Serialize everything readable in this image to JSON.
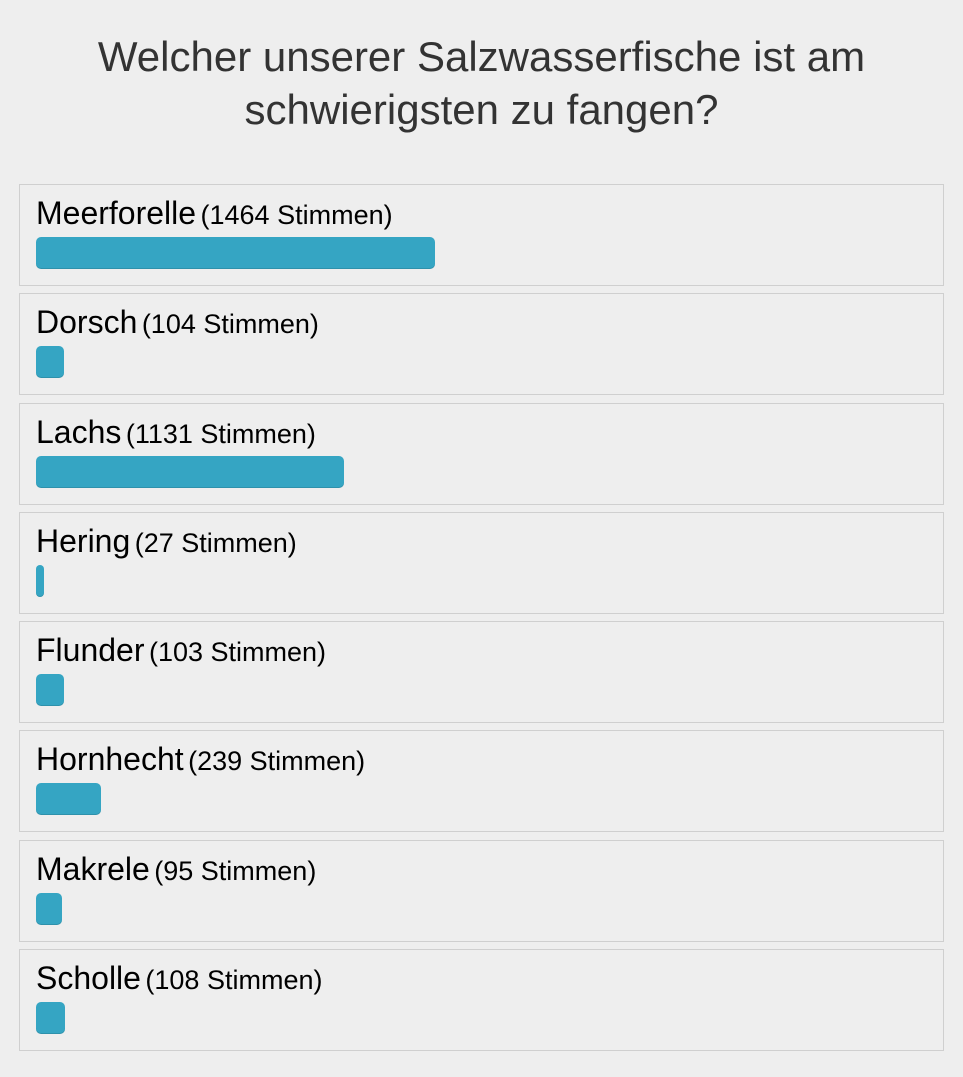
{
  "poll": {
    "title": "Welcher unserer Salzwasserfische ist am schwierigsten zu fangen?",
    "bar_color": "#35a5c3",
    "options": [
      {
        "label": "Meerforelle",
        "votes_text": "(1464 Stimmen)",
        "votes": 1464
      },
      {
        "label": "Dorsch",
        "votes_text": "(104 Stimmen)",
        "votes": 104
      },
      {
        "label": "Lachs",
        "votes_text": "(1131 Stimmen)",
        "votes": 1131
      },
      {
        "label": "Hering",
        "votes_text": "(27 Stimmen)",
        "votes": 27
      },
      {
        "label": "Flunder",
        "votes_text": "(103 Stimmen)",
        "votes": 103
      },
      {
        "label": "Hornhecht",
        "votes_text": "(239 Stimmen)",
        "votes": 239
      },
      {
        "label": "Makrele",
        "votes_text": "(95 Stimmen)",
        "votes": 95
      },
      {
        "label": "Scholle",
        "votes_text": "(108 Stimmen)",
        "votes": 108
      }
    ]
  },
  "chart_data": {
    "type": "bar",
    "orientation": "horizontal",
    "title": "Welcher unserer Salzwasserfische ist am schwierigsten zu fangen?",
    "categories": [
      "Meerforelle",
      "Dorsch",
      "Lachs",
      "Hering",
      "Flunder",
      "Hornhecht",
      "Makrele",
      "Scholle"
    ],
    "values": [
      1464,
      104,
      1131,
      27,
      103,
      239,
      95,
      108
    ],
    "xlabel": "",
    "ylabel": "",
    "grid": false
  }
}
